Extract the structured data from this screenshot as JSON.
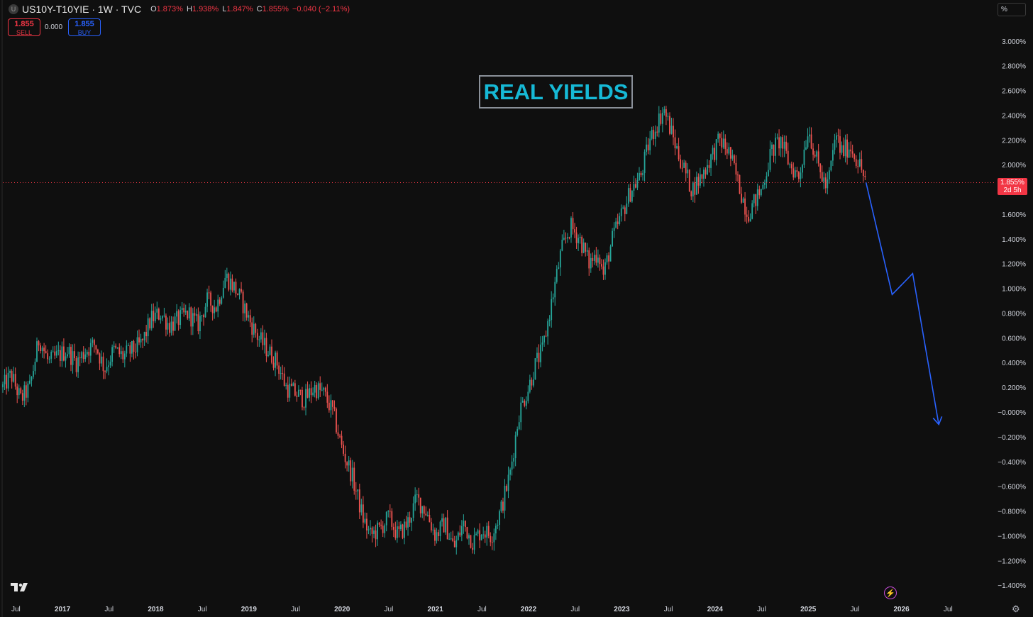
{
  "header": {
    "symbol_icon": "U",
    "symbol": "US10Y-T10YIE · 1W · TVC",
    "open_label": "O",
    "open": "1.873%",
    "high_label": "H",
    "high": "1.938%",
    "low_label": "L",
    "low": "1.847%",
    "close_label": "C",
    "close": "1.855%",
    "change": "−0.040 (−2.11%)"
  },
  "trade": {
    "sell_price": "1.855",
    "sell_label": "SELL",
    "spread": "0.000",
    "buy_price": "1.855",
    "buy_label": "BUY"
  },
  "unit_label": "%",
  "title": "REAL YIELDS",
  "current_price": {
    "value": "1.855%",
    "countdown": "2d 5h"
  },
  "icons": {
    "logo": "tradingview-logo-icon",
    "lightning": "lightning-icon",
    "settings": "gear-icon"
  },
  "colors": {
    "up": "#26a69a",
    "down": "#ef5350",
    "projection": "#2962ff",
    "price_line": "#f23645",
    "title": "#16b9d6"
  },
  "chart_data": {
    "type": "line",
    "series_style": "candlestick",
    "title": "REAL YIELDS",
    "y_unit": "%",
    "ylim": [
      -1.45,
      3.1
    ],
    "y_ticks": [
      "3.000%",
      "2.800%",
      "2.600%",
      "2.400%",
      "2.200%",
      "2.000%",
      "1.600%",
      "1.400%",
      "1.200%",
      "1.000%",
      "0.800%",
      "0.600%",
      "0.400%",
      "0.200%",
      "−0.000%",
      "−0.200%",
      "−0.400%",
      "−0.600%",
      "−0.800%",
      "−1.000%",
      "−1.200%",
      "−1.400%"
    ],
    "y_tick_values": [
      3.0,
      2.8,
      2.6,
      2.4,
      2.2,
      2.0,
      1.6,
      1.4,
      1.2,
      1.0,
      0.8,
      0.6,
      0.4,
      0.2,
      0.0,
      -0.2,
      -0.4,
      -0.6,
      -0.8,
      -1.0,
      -1.2,
      -1.4
    ],
    "x_ticks": [
      "Jul",
      "2017",
      "Jul",
      "2018",
      "Jul",
      "2019",
      "Jul",
      "2020",
      "Jul",
      "2021",
      "Jul",
      "2022",
      "Jul",
      "2023",
      "Jul",
      "2024",
      "Jul",
      "2025",
      "Jul",
      "2026",
      "Jul"
    ],
    "x_tick_values": [
      2016.5,
      2017.0,
      2017.5,
      2018.0,
      2018.5,
      2019.0,
      2019.5,
      2020.0,
      2020.5,
      2021.0,
      2021.5,
      2022.0,
      2022.5,
      2023.0,
      2023.5,
      2024.0,
      2024.5,
      2025.0,
      2025.5,
      2026.0,
      2026.5
    ],
    "xlim": [
      2016.36,
      2027.0
    ],
    "series": [
      {
        "x": [
          2016.36,
          2016.45,
          2016.55,
          2016.65,
          2016.75,
          2016.85,
          2016.95,
          2017.05,
          2017.15,
          2017.25,
          2017.35,
          2017.45,
          2017.55,
          2017.65,
          2017.75,
          2017.85,
          2017.95,
          2018.05,
          2018.15,
          2018.25,
          2018.35,
          2018.45,
          2018.55,
          2018.65,
          2018.75,
          2018.85,
          2018.92,
          2019.0,
          2019.1,
          2019.2,
          2019.3,
          2019.4,
          2019.5,
          2019.6,
          2019.7,
          2019.8,
          2019.9,
          2020.0,
          2020.1,
          2020.17,
          2020.22,
          2020.3,
          2020.4,
          2020.5,
          2020.6,
          2020.7,
          2020.8,
          2020.9,
          2021.0,
          2021.1,
          2021.2,
          2021.3,
          2021.4,
          2021.5,
          2021.6,
          2021.7,
          2021.8,
          2021.9,
          2022.0,
          2022.08,
          2022.15,
          2022.25,
          2022.35,
          2022.45,
          2022.55,
          2022.65,
          2022.75,
          2022.8,
          2022.9,
          2023.0,
          2023.1,
          2023.2,
          2023.3,
          2023.45,
          2023.6,
          2023.75,
          2023.85,
          2023.95,
          2024.05,
          2024.15,
          2024.25,
          2024.35,
          2024.5,
          2024.6,
          2024.7,
          2024.8,
          2024.9,
          2025.0,
          2025.1,
          2025.2,
          2025.3,
          2025.35,
          2025.45,
          2025.55,
          2025.62
        ],
        "y": [
          0.2,
          0.3,
          0.1,
          0.2,
          0.6,
          0.4,
          0.45,
          0.5,
          0.4,
          0.5,
          0.55,
          0.35,
          0.5,
          0.45,
          0.5,
          0.55,
          0.75,
          0.8,
          0.7,
          0.75,
          0.8,
          0.7,
          0.9,
          0.85,
          1.1,
          1.0,
          0.9,
          0.75,
          0.6,
          0.5,
          0.4,
          0.2,
          0.15,
          0.1,
          0.2,
          0.15,
          0.0,
          -0.3,
          -0.5,
          -0.7,
          -0.85,
          -1.0,
          -0.95,
          -0.85,
          -1.0,
          -0.9,
          -0.7,
          -0.8,
          -1.0,
          -0.9,
          -1.1,
          -0.9,
          -1.05,
          -0.95,
          -1.0,
          -0.8,
          -0.5,
          0.0,
          0.2,
          0.4,
          0.5,
          0.9,
          1.3,
          1.5,
          1.4,
          1.2,
          1.3,
          1.1,
          1.4,
          1.6,
          1.8,
          1.9,
          2.2,
          2.45,
          2.1,
          1.8,
          1.9,
          2.05,
          2.2,
          2.1,
          1.85,
          1.6,
          1.8,
          2.1,
          2.2,
          2.0,
          1.9,
          2.3,
          2.0,
          1.8,
          2.25,
          2.1,
          2.15,
          2.0,
          1.855
        ]
      },
      {
        "name": "",
        "x": [
          2025.62,
          2025.9,
          2026.12,
          2026.4
        ],
        "y": [
          1.855,
          0.95,
          1.12,
          -0.1
        ]
      }
    ],
    "last_price": 1.855,
    "grid": false
  }
}
